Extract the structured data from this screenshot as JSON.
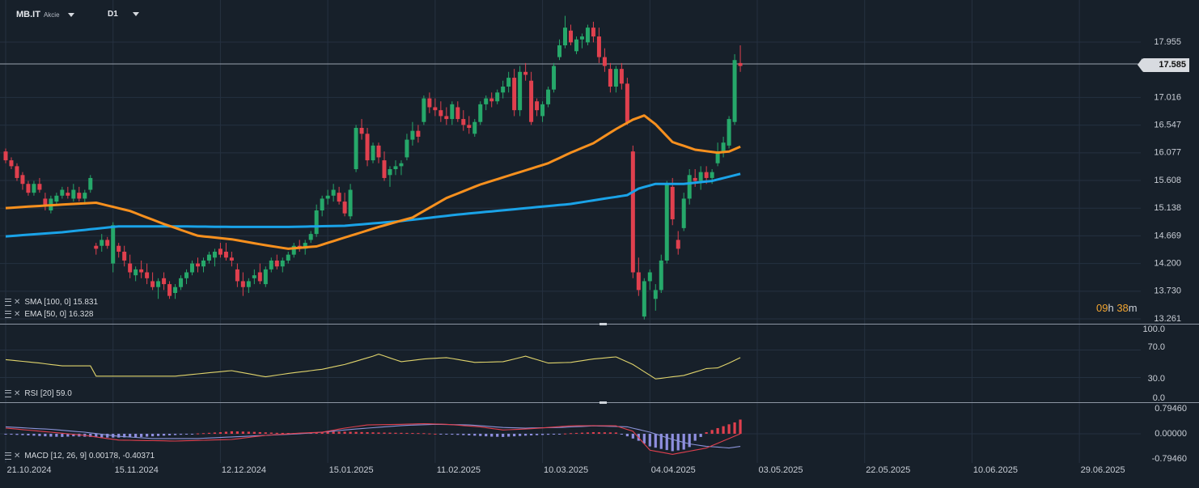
{
  "header": {
    "symbol": "MB.IT",
    "symbol_type": "Akcie",
    "timeframe": "D1"
  },
  "current_price_label": "17.585",
  "timer": {
    "h": "09",
    "h_unit": "h",
    "m": "38",
    "m_unit": "m"
  },
  "legends": {
    "sma": "SMA [100, 0] 15.831",
    "ema": "EMA [50, 0] 16.328",
    "rsi": "RSI [20] 59.0",
    "macd": "MACD [12, 26, 9] 0.00178, -0.40371"
  },
  "colors": {
    "background": "#17202a",
    "grid": "#253140",
    "bull": "#26a86a",
    "bear": "#e0404e",
    "sma": "#1aa3e8",
    "ema": "#f7901e",
    "rsi": "#e0d46c",
    "macd_line": "#e0404e",
    "signal_line": "#8b93d8",
    "hist_pos": "#e0404e",
    "hist_neg": "#8f8fe0",
    "axis_text": "#c9ced6"
  },
  "chart_data": {
    "type": "candlestick",
    "price_axis": {
      "ticks": [
        "17.955",
        "17.016",
        "16.547",
        "16.077",
        "15.608",
        "15.138",
        "14.669",
        "14.200",
        "13.730",
        "13.261"
      ],
      "range": [
        13.261,
        17.955
      ]
    },
    "rsi_axis": {
      "ticks": [
        "100.0",
        "70.0",
        "30.0",
        "0.0"
      ],
      "range": [
        0,
        100
      ]
    },
    "macd_axis": {
      "ticks": [
        "0.79460",
        "0.00000",
        "-0.79460"
      ],
      "range": [
        -0.7946,
        0.7946
      ]
    },
    "x_labels": [
      "21.10.2024",
      "15.11.2024",
      "12.12.2024",
      "15.01.2025",
      "11.02.2025",
      "10.03.2025",
      "04.04.2025",
      "03.05.2025",
      "22.05.2025",
      "10.06.2025",
      "29.06.2025"
    ],
    "x_label_bar_index": [
      0,
      19,
      38,
      57,
      76,
      95,
      114,
      133,
      152,
      171,
      190
    ],
    "candles": [
      [
        16.1,
        16.15,
        15.9,
        15.95
      ],
      [
        15.95,
        16.0,
        15.8,
        15.85
      ],
      [
        15.85,
        15.9,
        15.6,
        15.65
      ],
      [
        15.7,
        15.75,
        15.45,
        15.55
      ],
      [
        15.55,
        15.6,
        15.35,
        15.4
      ],
      [
        15.4,
        15.6,
        15.35,
        15.55
      ],
      [
        15.55,
        15.65,
        15.4,
        15.45
      ],
      [
        15.3,
        15.4,
        15.1,
        15.2
      ],
      [
        15.1,
        15.35,
        15.05,
        15.3
      ],
      [
        15.25,
        15.4,
        15.2,
        15.35
      ],
      [
        15.35,
        15.5,
        15.3,
        15.45
      ],
      [
        15.4,
        15.5,
        15.3,
        15.35
      ],
      [
        15.3,
        15.55,
        15.25,
        15.45
      ],
      [
        15.4,
        15.5,
        15.25,
        15.3
      ],
      [
        15.3,
        15.45,
        15.2,
        15.4
      ],
      [
        15.45,
        15.7,
        15.4,
        15.65
      ],
      [
        14.5,
        14.55,
        14.35,
        14.45
      ],
      [
        14.5,
        14.7,
        14.4,
        14.6
      ],
      [
        14.6,
        14.65,
        14.45,
        14.5
      ],
      [
        14.2,
        14.9,
        14.05,
        14.85
      ],
      [
        14.5,
        14.55,
        14.3,
        14.4
      ],
      [
        14.4,
        14.5,
        14.15,
        14.25
      ],
      [
        14.2,
        14.35,
        13.95,
        14.05
      ],
      [
        14.0,
        14.15,
        13.9,
        14.1
      ],
      [
        14.1,
        14.25,
        13.95,
        14.05
      ],
      [
        14.05,
        14.2,
        13.85,
        13.95
      ],
      [
        13.9,
        14.05,
        13.75,
        13.8
      ],
      [
        13.8,
        13.95,
        13.6,
        13.9
      ],
      [
        13.95,
        14.05,
        13.75,
        13.85
      ],
      [
        13.85,
        13.9,
        13.6,
        13.65
      ],
      [
        13.7,
        13.85,
        13.6,
        13.8
      ],
      [
        13.8,
        14.0,
        13.75,
        13.95
      ],
      [
        13.95,
        14.1,
        13.85,
        14.05
      ],
      [
        14.05,
        14.25,
        14.0,
        14.2
      ],
      [
        14.2,
        14.3,
        14.05,
        14.15
      ],
      [
        14.15,
        14.3,
        14.05,
        14.25
      ],
      [
        14.25,
        14.4,
        14.2,
        14.35
      ],
      [
        14.3,
        14.45,
        14.15,
        14.4
      ],
      [
        14.45,
        14.55,
        14.3,
        14.35
      ],
      [
        14.4,
        14.55,
        14.25,
        14.3
      ],
      [
        14.3,
        14.4,
        14.15,
        14.25
      ],
      [
        14.1,
        14.2,
        13.8,
        13.9
      ],
      [
        13.9,
        14.05,
        13.65,
        13.8
      ],
      [
        13.8,
        13.95,
        13.7,
        13.9
      ],
      [
        13.95,
        14.1,
        13.85,
        14.0
      ],
      [
        14.05,
        14.2,
        13.85,
        13.9
      ],
      [
        13.85,
        14.15,
        13.8,
        14.1
      ],
      [
        14.1,
        14.3,
        14.05,
        14.25
      ],
      [
        14.25,
        14.35,
        14.1,
        14.15
      ],
      [
        14.15,
        14.3,
        14.05,
        14.25
      ],
      [
        14.25,
        14.4,
        14.2,
        14.35
      ],
      [
        14.35,
        14.55,
        14.3,
        14.5
      ],
      [
        14.5,
        14.6,
        14.4,
        14.45
      ],
      [
        14.45,
        14.6,
        14.35,
        14.55
      ],
      [
        14.6,
        14.75,
        14.55,
        14.7
      ],
      [
        14.7,
        15.2,
        14.65,
        15.1
      ],
      [
        15.1,
        15.35,
        15.0,
        15.3
      ],
      [
        15.3,
        15.45,
        15.2,
        15.35
      ],
      [
        15.35,
        15.55,
        15.25,
        15.45
      ],
      [
        15.4,
        15.5,
        15.2,
        15.25
      ],
      [
        15.25,
        15.4,
        15.0,
        15.05
      ],
      [
        15.0,
        15.55,
        14.95,
        15.45
      ],
      [
        15.8,
        16.55,
        15.75,
        16.5
      ],
      [
        16.5,
        16.65,
        16.3,
        16.4
      ],
      [
        16.4,
        16.5,
        15.85,
        15.95
      ],
      [
        15.95,
        16.25,
        15.9,
        16.2
      ],
      [
        16.2,
        16.25,
        15.9,
        16.0
      ],
      [
        15.95,
        16.1,
        15.6,
        15.65
      ],
      [
        15.7,
        15.85,
        15.5,
        15.8
      ],
      [
        15.8,
        15.95,
        15.7,
        15.85
      ],
      [
        15.85,
        15.95,
        15.7,
        15.9
      ],
      [
        16.0,
        16.4,
        15.95,
        16.3
      ],
      [
        16.3,
        16.6,
        16.2,
        16.45
      ],
      [
        16.45,
        16.55,
        16.25,
        16.35
      ],
      [
        16.6,
        17.05,
        16.55,
        17.0
      ],
      [
        17.0,
        17.1,
        16.75,
        16.85
      ],
      [
        16.85,
        17.0,
        16.7,
        16.8
      ],
      [
        16.8,
        16.95,
        16.6,
        16.7
      ],
      [
        16.7,
        16.85,
        16.55,
        16.65
      ],
      [
        16.65,
        16.95,
        16.55,
        16.9
      ],
      [
        16.85,
        16.95,
        16.6,
        16.65
      ],
      [
        16.65,
        16.8,
        16.45,
        16.55
      ],
      [
        16.55,
        16.7,
        16.4,
        16.5
      ],
      [
        16.4,
        16.65,
        16.35,
        16.6
      ],
      [
        16.6,
        16.95,
        16.55,
        16.9
      ],
      [
        16.9,
        17.05,
        16.8,
        17.0
      ],
      [
        17.0,
        17.1,
        16.85,
        16.95
      ],
      [
        16.95,
        17.15,
        16.9,
        17.1
      ],
      [
        17.1,
        17.3,
        17.0,
        17.2
      ],
      [
        17.2,
        17.45,
        17.1,
        17.35
      ],
      [
        17.35,
        17.5,
        16.7,
        16.8
      ],
      [
        16.8,
        17.55,
        16.7,
        17.45
      ],
      [
        17.45,
        17.6,
        17.3,
        17.4
      ],
      [
        17.3,
        17.45,
        16.55,
        16.6
      ],
      [
        16.95,
        17.0,
        16.7,
        16.8
      ],
      [
        16.7,
        16.95,
        16.6,
        16.9
      ],
      [
        16.9,
        17.2,
        16.85,
        17.15
      ],
      [
        17.15,
        17.6,
        17.1,
        17.55
      ],
      [
        17.7,
        18.0,
        17.65,
        17.9
      ],
      [
        17.9,
        18.4,
        17.85,
        18.2
      ],
      [
        18.15,
        18.25,
        17.9,
        17.95
      ],
      [
        17.8,
        18.05,
        17.75,
        18.0
      ],
      [
        18.0,
        18.1,
        17.85,
        18.05
      ],
      [
        17.95,
        18.25,
        17.9,
        18.2
      ],
      [
        18.2,
        18.3,
        17.95,
        18.05
      ],
      [
        18.05,
        18.2,
        17.6,
        17.7
      ],
      [
        17.7,
        17.85,
        17.45,
        17.55
      ],
      [
        17.5,
        17.6,
        17.1,
        17.2
      ],
      [
        17.2,
        17.55,
        17.1,
        17.5
      ],
      [
        17.5,
        17.6,
        17.15,
        17.25
      ],
      [
        17.25,
        17.35,
        16.55,
        16.6
      ],
      [
        16.1,
        16.2,
        13.95,
        14.05
      ],
      [
        14.05,
        14.3,
        13.65,
        13.75
      ],
      [
        13.3,
        13.95,
        13.25,
        13.9
      ],
      [
        13.9,
        14.1,
        13.75,
        14.05
      ],
      [
        13.6,
        13.85,
        13.4,
        13.75
      ],
      [
        13.75,
        14.35,
        13.7,
        14.25
      ],
      [
        14.25,
        15.6,
        14.2,
        15.55
      ],
      [
        15.5,
        15.65,
        14.85,
        14.95
      ],
      [
        14.6,
        14.75,
        14.35,
        14.45
      ],
      [
        14.8,
        15.4,
        14.75,
        15.3
      ],
      [
        15.3,
        15.8,
        15.2,
        15.7
      ],
      [
        15.65,
        15.8,
        15.5,
        15.6
      ],
      [
        15.6,
        15.85,
        15.45,
        15.75
      ],
      [
        15.75,
        15.85,
        15.55,
        15.65
      ],
      [
        15.65,
        15.8,
        15.55,
        15.75
      ],
      [
        15.9,
        16.25,
        15.85,
        16.1
      ],
      [
        16.1,
        16.35,
        16.0,
        16.25
      ],
      [
        16.2,
        16.7,
        16.15,
        16.65
      ],
      [
        16.6,
        17.75,
        16.55,
        17.65
      ],
      [
        17.6,
        17.9,
        17.45,
        17.55
      ]
    ],
    "sma": [
      [
        0,
        14.66
      ],
      [
        10,
        14.73
      ],
      [
        20,
        14.83
      ],
      [
        30,
        14.83
      ],
      [
        40,
        14.82
      ],
      [
        50,
        14.82
      ],
      [
        60,
        14.84
      ],
      [
        70,
        14.92
      ],
      [
        80,
        15.03
      ],
      [
        90,
        15.12
      ],
      [
        100,
        15.21
      ],
      [
        110,
        15.36
      ],
      [
        112,
        15.47
      ],
      [
        115,
        15.55
      ],
      [
        120,
        15.55
      ],
      [
        125,
        15.6
      ],
      [
        130,
        15.72
      ]
    ],
    "ema": [
      [
        0,
        15.14
      ],
      [
        10,
        15.2
      ],
      [
        16,
        15.23
      ],
      [
        22,
        15.09
      ],
      [
        28,
        14.87
      ],
      [
        34,
        14.67
      ],
      [
        40,
        14.61
      ],
      [
        46,
        14.51
      ],
      [
        50,
        14.45
      ],
      [
        55,
        14.49
      ],
      [
        60,
        14.64
      ],
      [
        66,
        14.82
      ],
      [
        72,
        14.98
      ],
      [
        78,
        15.31
      ],
      [
        84,
        15.54
      ],
      [
        90,
        15.72
      ],
      [
        96,
        15.9
      ],
      [
        100,
        16.08
      ],
      [
        104,
        16.24
      ],
      [
        108,
        16.48
      ],
      [
        111,
        16.64
      ],
      [
        113,
        16.71
      ],
      [
        115,
        16.56
      ],
      [
        118,
        16.26
      ],
      [
        122,
        16.13
      ],
      [
        126,
        16.08
      ],
      [
        128,
        16.1
      ],
      [
        130,
        16.18
      ]
    ],
    "rsi": [
      [
        0,
        56
      ],
      [
        6,
        51
      ],
      [
        10,
        47
      ],
      [
        15,
        47
      ],
      [
        16,
        32
      ],
      [
        20,
        32
      ],
      [
        30,
        32
      ],
      [
        36,
        37
      ],
      [
        40,
        40
      ],
      [
        46,
        31
      ],
      [
        50,
        36
      ],
      [
        56,
        42
      ],
      [
        60,
        49
      ],
      [
        65,
        61
      ],
      [
        66,
        64
      ],
      [
        70,
        53
      ],
      [
        74,
        57
      ],
      [
        78,
        59
      ],
      [
        83,
        52
      ],
      [
        88,
        53
      ],
      [
        92,
        61
      ],
      [
        96,
        51
      ],
      [
        100,
        52
      ],
      [
        104,
        57
      ],
      [
        108,
        60
      ],
      [
        111,
        49
      ],
      [
        115,
        28
      ],
      [
        120,
        33
      ],
      [
        124,
        43
      ],
      [
        126,
        44
      ],
      [
        128,
        51
      ],
      [
        130,
        59
      ]
    ],
    "macd": [
      [
        0,
        0.18
      ],
      [
        8,
        0.05
      ],
      [
        14,
        -0.05
      ],
      [
        20,
        -0.2
      ],
      [
        30,
        -0.23
      ],
      [
        40,
        -0.18
      ],
      [
        46,
        -0.05
      ],
      [
        52,
        0.02
      ],
      [
        56,
        0.05
      ],
      [
        60,
        0.18
      ],
      [
        64,
        0.28
      ],
      [
        70,
        0.3
      ],
      [
        74,
        0.32
      ],
      [
        78,
        0.3
      ],
      [
        84,
        0.22
      ],
      [
        88,
        0.12
      ],
      [
        92,
        0.15
      ],
      [
        100,
        0.25
      ],
      [
        104,
        0.26
      ],
      [
        108,
        0.25
      ],
      [
        111,
        0.08
      ],
      [
        114,
        -0.52
      ],
      [
        118,
        -0.65
      ],
      [
        121,
        -0.55
      ],
      [
        124,
        -0.45
      ],
      [
        126,
        -0.3
      ],
      [
        128,
        -0.15
      ],
      [
        130,
        0.0
      ]
    ],
    "signal": [
      [
        0,
        0.22
      ],
      [
        8,
        0.14
      ],
      [
        14,
        0.05
      ],
      [
        20,
        -0.08
      ],
      [
        26,
        -0.15
      ],
      [
        34,
        -0.15
      ],
      [
        40,
        -0.1
      ],
      [
        46,
        -0.05
      ],
      [
        52,
        0.0
      ],
      [
        56,
        0.05
      ],
      [
        60,
        0.12
      ],
      [
        64,
        0.18
      ],
      [
        70,
        0.26
      ],
      [
        76,
        0.3
      ],
      [
        82,
        0.28
      ],
      [
        88,
        0.2
      ],
      [
        92,
        0.18
      ],
      [
        98,
        0.2
      ],
      [
        104,
        0.25
      ],
      [
        110,
        0.22
      ],
      [
        114,
        0.05
      ],
      [
        118,
        -0.18
      ],
      [
        121,
        -0.32
      ],
      [
        124,
        -0.4
      ],
      [
        126,
        -0.42
      ],
      [
        128,
        -0.45
      ],
      [
        130,
        -0.4
      ]
    ],
    "histogram": [
      [
        0,
        -0.02
      ],
      [
        4,
        -0.05
      ],
      [
        8,
        -0.09
      ],
      [
        10,
        -0.1
      ],
      [
        12,
        -0.08
      ],
      [
        15,
        -0.1
      ],
      [
        18,
        -0.12
      ],
      [
        20,
        -0.12
      ],
      [
        24,
        -0.1
      ],
      [
        28,
        -0.06
      ],
      [
        32,
        -0.02
      ],
      [
        34,
        0.01
      ],
      [
        38,
        0.05
      ],
      [
        40,
        0.08
      ],
      [
        44,
        0.06
      ],
      [
        48,
        0.03
      ],
      [
        52,
        0.02
      ],
      [
        56,
        0.05
      ],
      [
        58,
        0.07
      ],
      [
        62,
        0.06
      ],
      [
        66,
        0.04
      ],
      [
        70,
        0.03
      ],
      [
        74,
        0.02
      ],
      [
        78,
        -0.02
      ],
      [
        82,
        -0.05
      ],
      [
        86,
        -0.09
      ],
      [
        88,
        -0.1
      ],
      [
        92,
        -0.06
      ],
      [
        96,
        -0.03
      ],
      [
        100,
        0.02
      ],
      [
        104,
        0.05
      ],
      [
        108,
        0.04
      ],
      [
        110,
        -0.08
      ],
      [
        112,
        -0.22
      ],
      [
        114,
        -0.4
      ],
      [
        116,
        -0.48
      ],
      [
        118,
        -0.55
      ],
      [
        120,
        -0.5
      ],
      [
        121,
        -0.42
      ],
      [
        122,
        -0.22
      ],
      [
        123,
        -0.1
      ],
      [
        124,
        0.05
      ],
      [
        125,
        0.12
      ],
      [
        126,
        0.18
      ],
      [
        127,
        0.24
      ],
      [
        128,
        0.3
      ],
      [
        129,
        0.36
      ],
      [
        130,
        0.45
      ]
    ]
  }
}
